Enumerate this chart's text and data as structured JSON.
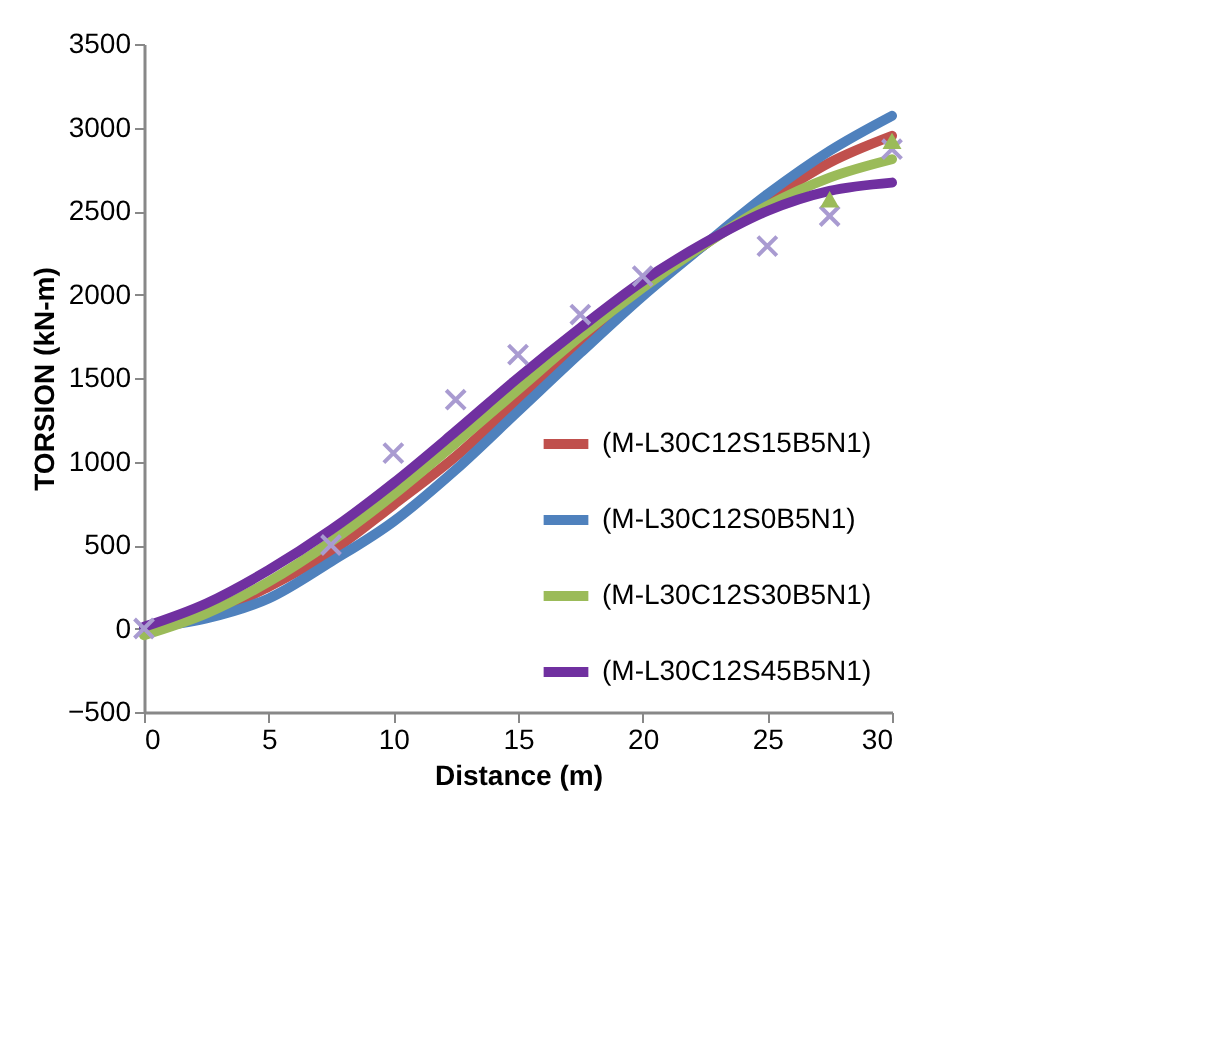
{
  "chart_data": {
    "type": "line",
    "xlabel": "Distance (m)",
    "ylabel": "TORSION (kN-m)",
    "xlim": [
      0,
      30
    ],
    "xticks": [
      0,
      5,
      10,
      15,
      20,
      25,
      30
    ],
    "ylim": [
      -500,
      3500
    ],
    "yticks": [
      -500,
      0,
      500,
      1000,
      1500,
      2000,
      2500,
      3000,
      3500
    ],
    "grid": false,
    "legend": "bottom right",
    "marker": "none",
    "line_style": "solid",
    "x": [
      0,
      2.5,
      5,
      7.5,
      10,
      12.5,
      15,
      17.5,
      20,
      22.5,
      25,
      27.5,
      30
    ],
    "series": [
      {
        "name": "(M-L30C12S15B5N1)",
        "color": "#c0504d",
        "values": [
          0,
          80,
          250,
          460,
          740,
          1030,
          1370,
          1700,
          2020,
          2300,
          2560,
          2790,
          2950
        ]
      },
      {
        "name": "(M-L30C12S0B5N1)",
        "color": "#4f81bd",
        "values": [
          0,
          60,
          180,
          400,
          640,
          950,
          1300,
          1650,
          1990,
          2300,
          2600,
          2860,
          3070
        ]
      },
      {
        "name": "(M-L30C12S30B5N1)",
        "color": "#9bbb59",
        "values": [
          -40,
          90,
          280,
          520,
          800,
          1110,
          1430,
          1750,
          2040,
          2300,
          2530,
          2700,
          2810
        ]
      },
      {
        "name": "(M-L30C12S45B5N1)",
        "color": "#7030a0",
        "values": [
          10,
          150,
          350,
          590,
          870,
          1180,
          1500,
          1800,
          2080,
          2310,
          2500,
          2620,
          2670
        ]
      },
      {
        "type": "scatter",
        "marker": "cross",
        "color": "#a99bd1",
        "x": [
          0,
          7.5,
          10,
          12.5,
          15,
          17.5,
          20,
          25,
          27.5,
          30
        ],
        "values": [
          0,
          500,
          1050,
          1370,
          1640,
          1880,
          2110,
          2290,
          2470,
          2870
        ]
      },
      {
        "type": "scatter",
        "marker": "triangle",
        "color": "#9bbb59",
        "x": [
          27.5,
          30
        ],
        "values": [
          2570,
          2920
        ]
      }
    ]
  }
}
